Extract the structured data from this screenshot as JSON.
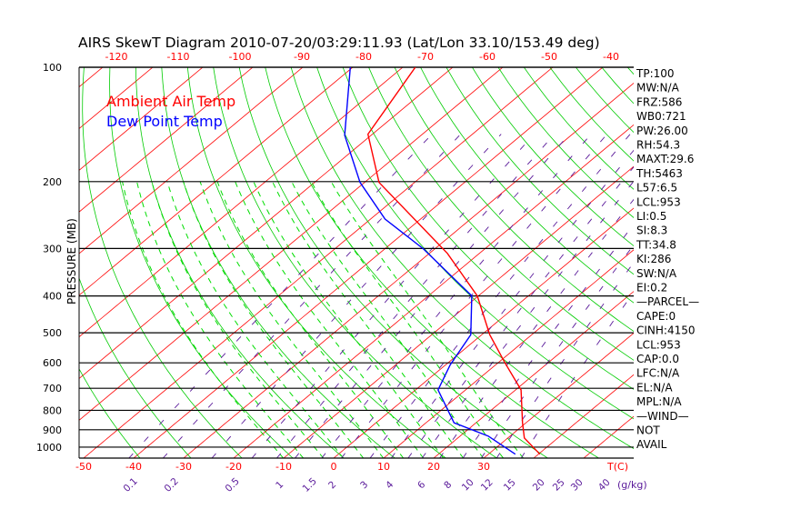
{
  "chart_data": {
    "type": "line",
    "title": "AIRS SkewT Diagram 2010-07-20/03:29:11.93 (Lat/Lon 33.10/153.49 deg)",
    "ylabel": "PRESSURE (MB)",
    "xlabel": "T(C)",
    "mixing_ratio_unit": "(g/kg)",
    "pressure_ticks": [
      100,
      200,
      300,
      400,
      500,
      600,
      700,
      800,
      900,
      1000
    ],
    "bottom_temp_ticks": [
      -50,
      -40,
      -30,
      -20,
      -10,
      0,
      10,
      20,
      30
    ],
    "top_temp_ticks": [
      -120,
      -110,
      -100,
      -90,
      -80,
      -70,
      -60,
      -50,
      -40
    ],
    "mixing_ratio_ticks": [
      "0.1",
      "0.2",
      "0.5",
      "1",
      "1.5",
      "2",
      "3",
      "4",
      "6",
      "8",
      "10",
      "12",
      "15",
      "20",
      "25",
      "30",
      "40"
    ],
    "legend": [
      {
        "label": "Ambient Air Temp",
        "color": "#ff0000"
      },
      {
        "label": "Dew Point Temp",
        "color": "#0000ff"
      }
    ],
    "legend_position": "top-left",
    "series": [
      {
        "name": "Ambient Air Temp",
        "color": "#ff0000",
        "points": [
          [
            100,
            -77.5
          ],
          [
            150,
            -70.9
          ],
          [
            201,
            -57.1
          ],
          [
            309,
            -26.4
          ],
          [
            400,
            -10.2
          ],
          [
            506,
            1.6
          ],
          [
            597,
            11.1
          ],
          [
            707,
            21.1
          ],
          [
            863,
            29.3
          ],
          [
            946,
            33.3
          ],
          [
            1044,
            40.3
          ]
        ]
      },
      {
        "name": "Dew Point Temp",
        "color": "#0000ff",
        "points": [
          [
            100,
            -90.5
          ],
          [
            151,
            -75.3
          ],
          [
            201,
            -60.9
          ],
          [
            251,
            -47.1
          ],
          [
            301,
            -32.2
          ],
          [
            400,
            -11.3
          ],
          [
            506,
            -2.2
          ],
          [
            607,
            0.9
          ],
          [
            707,
            4.5
          ],
          [
            863,
            15.6
          ],
          [
            935,
            25.6
          ],
          [
            1044,
            35.4
          ]
        ]
      }
    ],
    "indices": [
      "TP:100",
      "MW:N/A",
      "FRZ:586",
      "WB0:721",
      "PW:26.00",
      "RH:54.3",
      "MAXT:29.6",
      "TH:5463",
      "L57:6.5",
      "LCL:953",
      "LI:0.5",
      "SI:8.3",
      "TT:34.8",
      "KI:286",
      "SW:N/A",
      "EI:0.2",
      "—PARCEL—",
      "CAPE:0",
      "CINH:4150",
      "LCL:953",
      "CAP:0.0",
      "LFC:N/A",
      "EL:N/A",
      "MPL:N/A",
      "—WIND—",
      "NOT",
      "AVAIL"
    ],
    "colors": {
      "isotherm": "#ff0000",
      "dry_adiabat": "#00cc00",
      "moist_adiabat": "#00dd00",
      "mixing_ratio": "#5a1a9a",
      "isobar": "#000000"
    }
  }
}
